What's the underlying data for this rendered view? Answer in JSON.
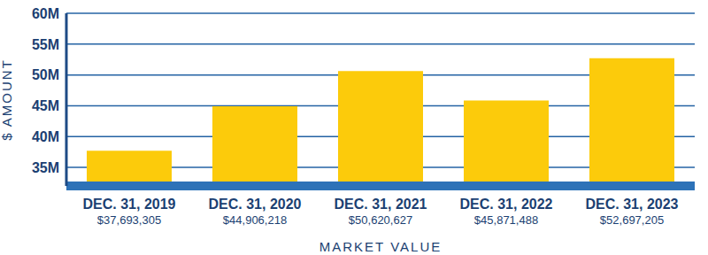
{
  "chart_data": {
    "type": "bar",
    "categories": [
      "DEC. 31, 2019",
      "DEC. 31, 2020",
      "DEC. 31, 2021",
      "DEC. 31, 2022",
      "DEC. 31, 2023"
    ],
    "values": [
      37693305,
      44906218,
      50620627,
      45871488,
      52697205
    ],
    "value_labels": [
      "$37,693,305",
      "$44,906,218",
      "$50,620,627",
      "$45,871,488",
      "$52,697,205"
    ],
    "color": "#fccb0b",
    "x_label": "MARKET VALUE",
    "y_label": "$ AMOUNT",
    "ylim": [
      32000000,
      60000000
    ],
    "yticks": [
      {
        "value": 35000000,
        "label": "35M"
      },
      {
        "value": 40000000,
        "label": "40M"
      },
      {
        "value": 45000000,
        "label": "45M"
      },
      {
        "value": 50000000,
        "label": "50M"
      },
      {
        "value": 55000000,
        "label": "55M"
      },
      {
        "value": 60000000,
        "label": "60M"
      }
    ],
    "grid": true
  }
}
